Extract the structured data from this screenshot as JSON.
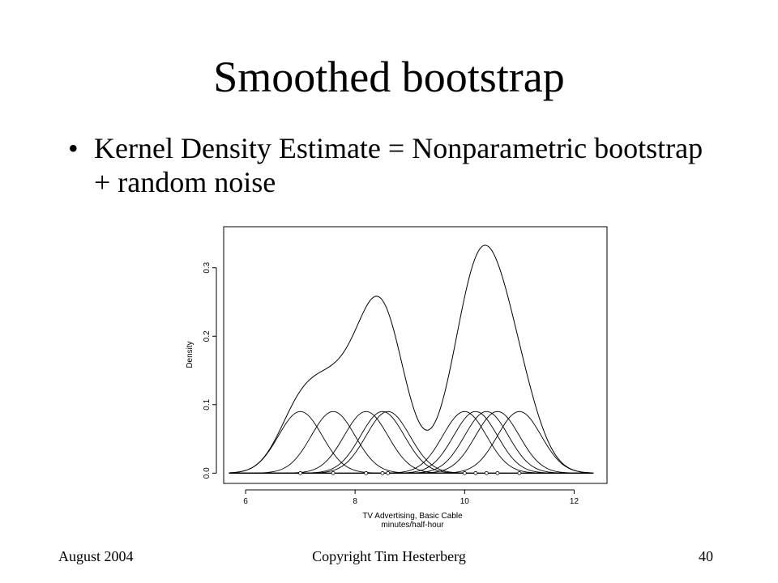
{
  "slide": {
    "title": "Smoothed bootstrap",
    "bullet": "•",
    "bullet_text": "Kernel Density Estimate = Nonparametric bootstrap + random noise"
  },
  "footer": {
    "left": "August 2004",
    "center": "Copyright Tim Hesterberg",
    "right": "40"
  },
  "chart_data": {
    "type": "line",
    "title": "",
    "xlabel_lines": [
      "TV Advertising, Basic Cable",
      "minutes/half-hour"
    ],
    "ylabel": "Density",
    "xlim": [
      5.6,
      12.6
    ],
    "ylim": [
      -0.015,
      0.36
    ],
    "x_ticks": [
      6,
      8,
      10,
      12
    ],
    "y_ticks": [
      0.0,
      0.1,
      0.2,
      0.3
    ],
    "y_tick_labels": [
      "0.0",
      "0.1",
      "0.2",
      "0.3"
    ],
    "x_range_curves": [
      5.7,
      12.35
    ],
    "kernel": "gaussian",
    "bandwidth": 0.4,
    "kernel_peak": 0.09,
    "data_points": [
      7.0,
      7.6,
      8.2,
      8.5,
      8.6,
      10.0,
      10.2,
      10.4,
      10.6,
      11.0
    ],
    "series": [
      {
        "name": "density",
        "peak_approx": [
          {
            "x": 8.4,
            "y": 0.265
          },
          {
            "x": 10.45,
            "y": 0.348
          }
        ],
        "trough_approx": {
          "x": 9.4,
          "y": 0.09
        }
      }
    ],
    "grid": false
  }
}
